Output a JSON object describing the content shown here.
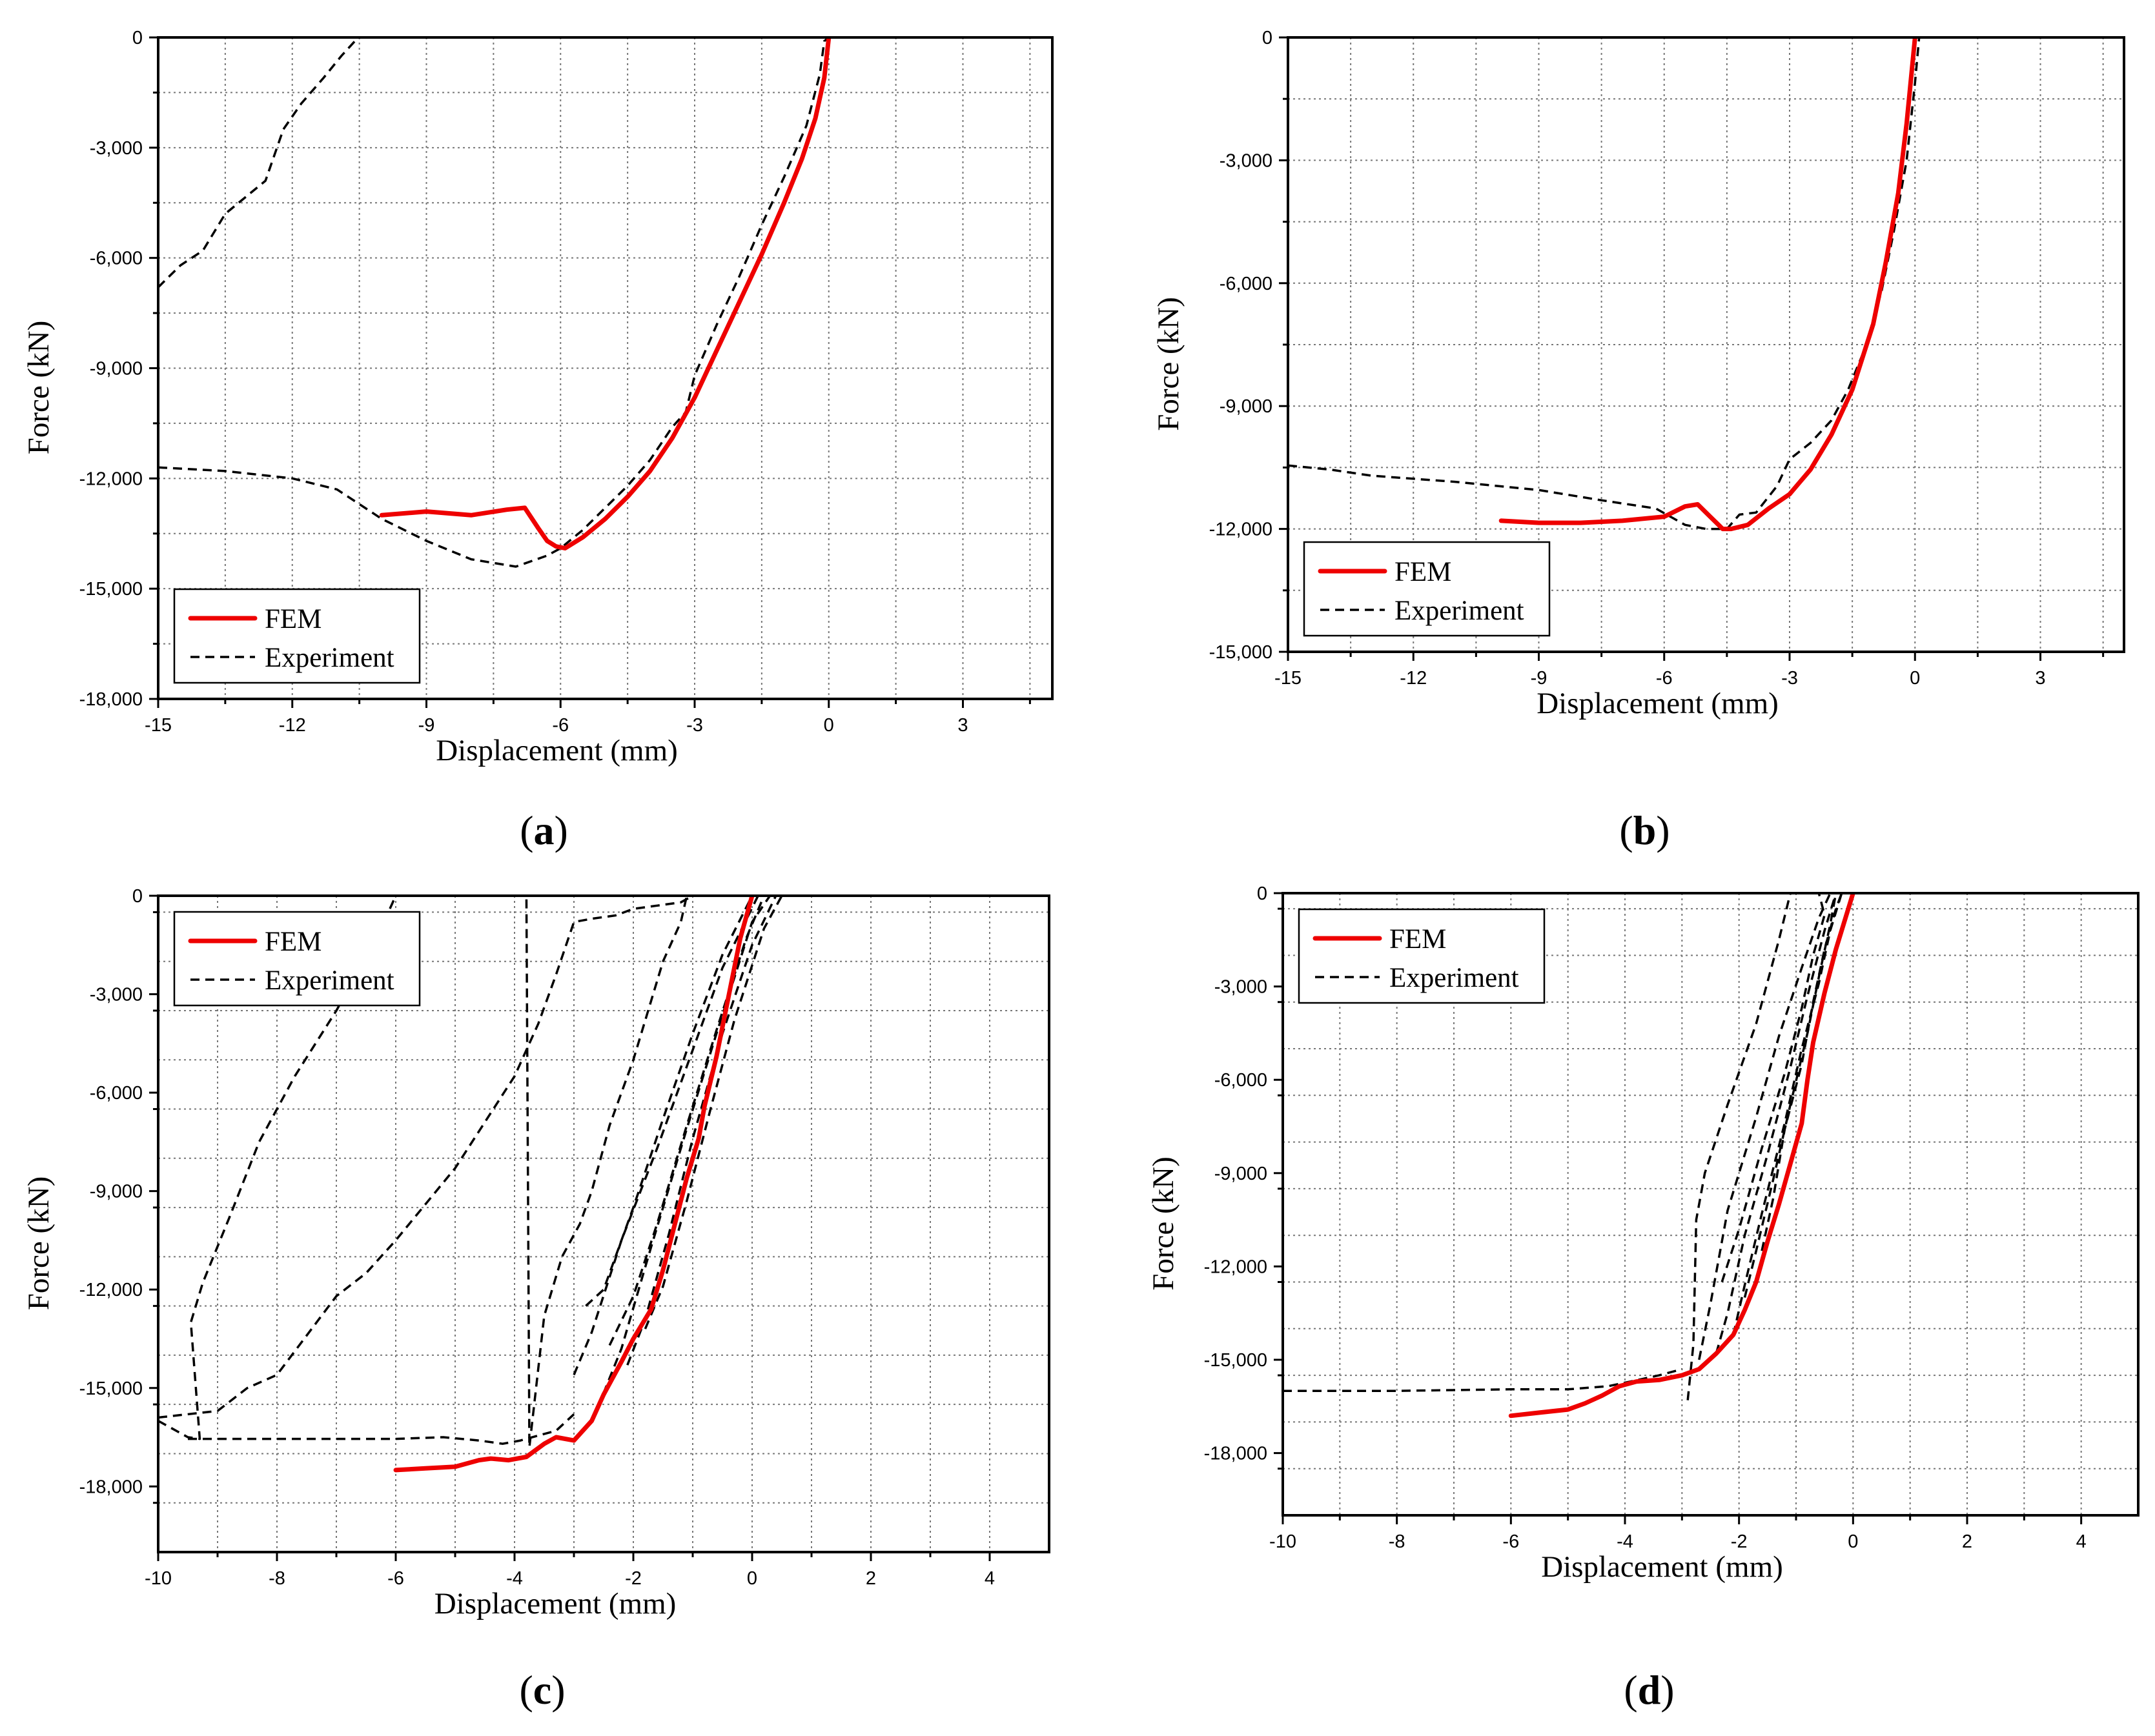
{
  "colors": {
    "fem": "#ee0000",
    "experiment": "#000000",
    "grid": "#777777"
  },
  "chart_data": [
    {
      "type": "line",
      "panel_label": "a",
      "xlabel": "Displacement (mm)",
      "ylabel": "Force (kN)",
      "xlim": [
        -15,
        5
      ],
      "ylim": [
        -18000,
        0
      ],
      "xticks": [
        -15,
        -12,
        -9,
        -6,
        -3,
        0,
        3
      ],
      "xtick_labels": [
        "-15",
        "-12",
        "-9",
        "-6",
        "-3",
        "0",
        "3"
      ],
      "yticks": [
        0,
        -3000,
        -6000,
        -9000,
        -12000,
        -15000,
        -18000
      ],
      "ytick_labels": [
        "0",
        "-3,000",
        "-6,000",
        "-9,000",
        "-12,000",
        "-15,000",
        "-18,000"
      ],
      "legend": {
        "position": "bottom-left",
        "entries": [
          "FEM",
          "Experiment"
        ]
      },
      "series": [
        {
          "name": "FEM",
          "style": "solid",
          "x": [
            -10,
            -9,
            -8,
            -7.2,
            -6.8,
            -6.5,
            -6.3,
            -6.1,
            -5.9,
            -5.5,
            -5,
            -4.5,
            -4,
            -3.5,
            -3,
            -2.5,
            -2,
            -1.5,
            -1,
            -0.6,
            -0.3,
            -0.1,
            0
          ],
          "y": [
            -13000,
            -12900,
            -13000,
            -12850,
            -12800,
            -13350,
            -13700,
            -13850,
            -13900,
            -13600,
            -13100,
            -12500,
            -11800,
            -10900,
            -9800,
            -8500,
            -7200,
            -5900,
            -4500,
            -3300,
            -2200,
            -1100,
            0
          ]
        },
        {
          "name": "Experiment",
          "style": "dashed",
          "x": [
            -15,
            -14.5,
            -14,
            -13.5,
            -12.6,
            -12.2,
            -11.8,
            -11.3,
            -10.9,
            -10.6,
            -10.5,
            -10.5
          ],
          "y": [
            -6800,
            -6200,
            -5800,
            -4800,
            -3900,
            -2500,
            -1800,
            -1100,
            -500,
            -100,
            0,
            0
          ]
        },
        {
          "name": "Experiment",
          "style": "dashed",
          "x": [
            -15,
            -13.5,
            -12,
            -11,
            -10,
            -9,
            -8,
            -7,
            -6.3,
            -6,
            -5.5,
            -5,
            -4.5,
            -4,
            -3.5,
            -3.2,
            -3,
            -2.5,
            -2,
            -1.5,
            -1,
            -0.5,
            -0.2,
            -0.1,
            0
          ],
          "y": [
            -11700,
            -11800,
            -12000,
            -12300,
            -13100,
            -13700,
            -14200,
            -14400,
            -14100,
            -13900,
            -13400,
            -12800,
            -12200,
            -11500,
            -10600,
            -10200,
            -9200,
            -7800,
            -6500,
            -5100,
            -3800,
            -2400,
            -1000,
            -100,
            0
          ]
        }
      ]
    },
    {
      "type": "line",
      "panel_label": "b",
      "xlabel": "Displacement (mm)",
      "ylabel": "Force (kN)",
      "xlim": [
        -15,
        5
      ],
      "ylim": [
        -15000,
        0
      ],
      "xticks": [
        -15,
        -12,
        -9,
        -6,
        -3,
        0,
        3
      ],
      "xtick_labels": [
        "-15",
        "-12",
        "-9",
        "-6",
        "-3",
        "0",
        "3"
      ],
      "yticks": [
        0,
        -3000,
        -6000,
        -9000,
        -12000,
        -15000
      ],
      "ytick_labels": [
        "0",
        "-3,000",
        "-6,000",
        "-9,000",
        "-12,000",
        "-15,000"
      ],
      "legend": {
        "position": "bottom-left",
        "entries": [
          "FEM",
          "Experiment"
        ]
      },
      "series": [
        {
          "name": "FEM",
          "style": "solid",
          "x": [
            -9.9,
            -9,
            -8,
            -7,
            -6,
            -5.5,
            -5.2,
            -4.9,
            -4.6,
            -4.4,
            -4,
            -3.5,
            -3,
            -2.5,
            -2,
            -1.5,
            -1,
            -0.7,
            -0.4,
            -0.2,
            0
          ],
          "y": [
            -11800,
            -11850,
            -11850,
            -11800,
            -11700,
            -11450,
            -11400,
            -11700,
            -12000,
            -12000,
            -11900,
            -11500,
            -11150,
            -10550,
            -9700,
            -8600,
            -7000,
            -5500,
            -3800,
            -2100,
            0
          ]
        },
        {
          "name": "Experiment",
          "style": "dashed",
          "x": [
            -15,
            -14,
            -13,
            -11,
            -9,
            -7.5,
            -6.2,
            -5.5,
            -5,
            -4.5,
            -4.2,
            -3.8,
            -3.3,
            -3,
            -2.5,
            -2,
            -1.6,
            -1.2,
            -0.8,
            -0.5,
            -0.2,
            0,
            0.1
          ],
          "y": [
            -10450,
            -10550,
            -10700,
            -10850,
            -11050,
            -11300,
            -11500,
            -11900,
            -12000,
            -12000,
            -11650,
            -11600,
            -10950,
            -10300,
            -9900,
            -9350,
            -8600,
            -7600,
            -6200,
            -4700,
            -3000,
            -1100,
            0
          ]
        }
      ]
    },
    {
      "type": "line",
      "panel_label": "c",
      "xlabel": "Displacement (mm)",
      "ylabel": "Force (kN)",
      "xlim": [
        -10,
        5
      ],
      "ylim": [
        -20000,
        0
      ],
      "xticks": [
        -10,
        -8,
        -6,
        -4,
        -2,
        0,
        2,
        4
      ],
      "xtick_labels": [
        "-10",
        "-8",
        "-6",
        "-4",
        "-2",
        "0",
        "2",
        "4"
      ],
      "yticks": [
        0,
        -3000,
        -6000,
        -9000,
        -12000,
        -15000,
        -18000
      ],
      "ytick_labels": [
        "0",
        "-3,000",
        "-6,000",
        "-9,000",
        "-12,000",
        "-15,000",
        "-18,000"
      ],
      "legend": {
        "position": "top-left",
        "entries": [
          "FEM",
          "Experiment"
        ]
      },
      "series": [
        {
          "name": "FEM",
          "style": "solid",
          "x": [
            -6,
            -5.5,
            -5,
            -4.6,
            -4.4,
            -4.1,
            -3.8,
            -3.5,
            -3.3,
            -3,
            -2.7,
            -2.5,
            -2.2,
            -2,
            -1.7,
            -1.5,
            -1.3,
            -1.1,
            -0.9,
            -0.8,
            -0.6,
            -0.4,
            -0.2,
            0
          ],
          "y": [
            -17500,
            -17450,
            -17400,
            -17200,
            -17150,
            -17200,
            -17100,
            -16700,
            -16500,
            -16600,
            -16000,
            -15200,
            -14200,
            -13500,
            -12600,
            -11400,
            -10000,
            -8600,
            -7400,
            -6400,
            -4900,
            -3100,
            -1300,
            0
          ]
        },
        {
          "name": "Experiment",
          "style": "dashed",
          "x": [
            -10,
            -9.5,
            -9.3,
            -9.45,
            -9.25,
            -8.8,
            -8.3,
            -7.7,
            -7,
            -6.3,
            -6,
            -5.5,
            -5.1,
            -4.7,
            -4.3,
            -4,
            -3.8,
            -3.75,
            -3.5,
            -3.2,
            -2.9,
            -2.7,
            -2.4,
            -2,
            -1.7,
            -1.5,
            -1.2,
            -1.1,
            -0.9,
            -0.7,
            0.7,
            5
          ],
          "y": [
            -16000,
            -16500,
            -16550,
            -13000,
            -11800,
            -9800,
            -7500,
            -5500,
            -3500,
            -1200,
            0,
            0,
            0,
            0,
            0,
            0,
            0,
            -16800,
            -12800,
            -11000,
            -10000,
            -9000,
            -7000,
            -5000,
            -3200,
            -2000,
            -800,
            0,
            0,
            0,
            0,
            0
          ]
        },
        {
          "name": "Experiment",
          "style": "dashed",
          "x": [
            -10,
            -9,
            -8.5,
            -8,
            -7,
            -6.5,
            -6,
            -5,
            -4,
            -3.6,
            -3.3,
            -3,
            -2.7,
            -2.3,
            -2,
            -1.6,
            -1.2,
            -1,
            -0.8,
            -0.5,
            -0.3,
            0
          ],
          "y": [
            -15900,
            -15700,
            -15000,
            -14600,
            -12200,
            -11500,
            -10500,
            -8300,
            -5500,
            -3900,
            -2400,
            -800,
            -700,
            -600,
            -400,
            -300,
            -200,
            0,
            0,
            0,
            0,
            0
          ]
        },
        {
          "name": "Experiment",
          "style": "dashed",
          "x": [
            -9.5,
            -8,
            -6,
            -5.2,
            -4.6,
            -4.2,
            -3.9,
            -3.5,
            -3.3,
            -3
          ],
          "y": [
            -16550,
            -16550,
            -16550,
            -16500,
            -16600,
            -16700,
            -16600,
            -16400,
            -16300,
            -15800
          ]
        },
        {
          "name": "Experiment",
          "style": "dashed",
          "x": [
            -2.8,
            -2.5,
            -2,
            -1.5,
            -1,
            -0.5,
            0
          ],
          "y": [
            -12500,
            -12000,
            -9500,
            -6800,
            -4200,
            -1800,
            0
          ]
        },
        {
          "name": "Experiment",
          "style": "dashed",
          "x": [
            -3,
            -2.7,
            -2.2,
            -1.6,
            -1.0,
            -0.5,
            0.1
          ],
          "y": [
            -14600,
            -13300,
            -10500,
            -7700,
            -4700,
            -2200,
            0
          ]
        },
        {
          "name": "Experiment",
          "style": "dashed",
          "x": [
            -2.6,
            -2.2,
            -1.7,
            -1.1,
            -0.6,
            0,
            0.3
          ],
          "y": [
            -15600,
            -13800,
            -10700,
            -7100,
            -4200,
            -800,
            0
          ]
        },
        {
          "name": "Experiment",
          "style": "dashed",
          "x": [
            -2.1,
            -1.8,
            -1.4,
            -1.0,
            -0.5,
            0,
            0.4
          ],
          "y": [
            -14300,
            -12900,
            -10300,
            -7400,
            -4200,
            -1500,
            0
          ]
        },
        {
          "name": "Experiment",
          "style": "dashed",
          "x": [
            -1.8,
            -1.5,
            -1.1,
            -0.7,
            -0.3,
            0.2,
            0.5
          ],
          "y": [
            -13200,
            -11900,
            -9300,
            -6500,
            -3800,
            -1000,
            0
          ]
        },
        {
          "name": "Experiment",
          "style": "dashed",
          "x": [
            -2.4,
            -2.0,
            -1.6,
            -1.1,
            -0.6,
            -0.1,
            0.2
          ],
          "y": [
            -13700,
            -12200,
            -10000,
            -7000,
            -4100,
            -1300,
            0
          ]
        }
      ]
    },
    {
      "type": "line",
      "panel_label": "d",
      "xlabel": "Displacement (mm)",
      "ylabel": "Force (kN)",
      "xlim": [
        -10,
        5
      ],
      "ylim": [
        -20000,
        0
      ],
      "xticks": [
        -10,
        -8,
        -6,
        -4,
        -2,
        0,
        2,
        4
      ],
      "xtick_labels": [
        "-10",
        "-8",
        "-6",
        "-4",
        "-2",
        "0",
        "2",
        "4"
      ],
      "yticks": [
        0,
        -3000,
        -6000,
        -9000,
        -12000,
        -15000,
        -18000
      ],
      "ytick_labels": [
        "0",
        "-3,000",
        "-6,000",
        "-9,000",
        "-12,000",
        "-15,000",
        "-18,000"
      ],
      "legend": {
        "position": "top-left",
        "entries": [
          "FEM",
          "Experiment"
        ]
      },
      "series": [
        {
          "name": "FEM",
          "style": "solid",
          "x": [
            -6,
            -5.5,
            -5,
            -4.7,
            -4.4,
            -4.1,
            -3.8,
            -3.4,
            -3,
            -2.7,
            -2.4,
            -2.1,
            -1.9,
            -1.7,
            -1.5,
            -1.3,
            -1.1,
            -0.9,
            -0.8,
            -0.7,
            -0.5,
            -0.3,
            -0.1,
            0
          ],
          "y": [
            -16800,
            -16700,
            -16600,
            -16400,
            -16150,
            -15850,
            -15700,
            -15650,
            -15500,
            -15300,
            -14800,
            -14200,
            -13400,
            -12500,
            -11200,
            -10000,
            -8700,
            -7400,
            -6000,
            -4800,
            -3200,
            -1800,
            -600,
            0
          ]
        },
        {
          "name": "Experiment",
          "style": "dashed",
          "x": [
            -10,
            -8,
            -6,
            -5,
            -4.3,
            -3.9,
            -3.4,
            -3
          ],
          "y": [
            -16000,
            -16000,
            -15950,
            -15950,
            -15850,
            -15700,
            -15500,
            -15300
          ]
        },
        {
          "name": "Experiment",
          "style": "dashed",
          "x": [
            -2.9,
            -2.8,
            -2.75,
            -2.6,
            -2.2,
            -1.7,
            -1.3,
            -1.1,
            -0.7,
            -0.5
          ],
          "y": [
            -16300,
            -14500,
            -10500,
            -9000,
            -6800,
            -4200,
            -1500,
            0,
            0,
            0
          ]
        },
        {
          "name": "Experiment",
          "style": "dashed",
          "x": [
            -2.7,
            -2.5,
            -2.2,
            -1.7,
            -1.3,
            -0.9,
            -0.6,
            -0.4
          ],
          "y": [
            -15000,
            -13200,
            -10200,
            -7200,
            -4600,
            -2400,
            -800,
            0
          ]
        },
        {
          "name": "Experiment",
          "style": "dashed",
          "x": [
            -2.4,
            -2.2,
            -1.9,
            -1.5,
            -1.1,
            -0.8,
            -0.5,
            -0.3
          ],
          "y": [
            -14800,
            -13500,
            -11000,
            -8400,
            -5600,
            -3300,
            -1200,
            0
          ]
        },
        {
          "name": "Experiment",
          "style": "dashed",
          "x": [
            -2.1,
            -1.9,
            -1.6,
            -1.2,
            -0.9,
            -0.6,
            -0.4,
            -0.2
          ],
          "y": [
            -14200,
            -12600,
            -10300,
            -7400,
            -5000,
            -2900,
            -1200,
            0
          ]
        },
        {
          "name": "Experiment",
          "style": "dashed",
          "x": [
            -1.9,
            -1.7,
            -1.4,
            -1.1,
            -0.8,
            -0.6,
            -0.4,
            -0.3
          ],
          "y": [
            -13000,
            -11500,
            -9200,
            -6800,
            -4500,
            -2700,
            -1000,
            0
          ]
        },
        {
          "name": "Experiment",
          "style": "dashed",
          "x": [
            -2.3,
            -2.0,
            -1.6,
            -1.2,
            -0.9,
            -0.7,
            -0.5,
            -0.6
          ],
          "y": [
            -12500,
            -10800,
            -8200,
            -5800,
            -3700,
            -2000,
            -700,
            0
          ]
        },
        {
          "name": "Experiment",
          "style": "dashed",
          "x": [
            -1.6,
            -1.4,
            -1.2,
            -0.9,
            -0.7,
            -0.5,
            -0.3,
            -0.2
          ],
          "y": [
            -11500,
            -9800,
            -7600,
            -5500,
            -3500,
            -1800,
            -500,
            0
          ]
        }
      ]
    }
  ]
}
